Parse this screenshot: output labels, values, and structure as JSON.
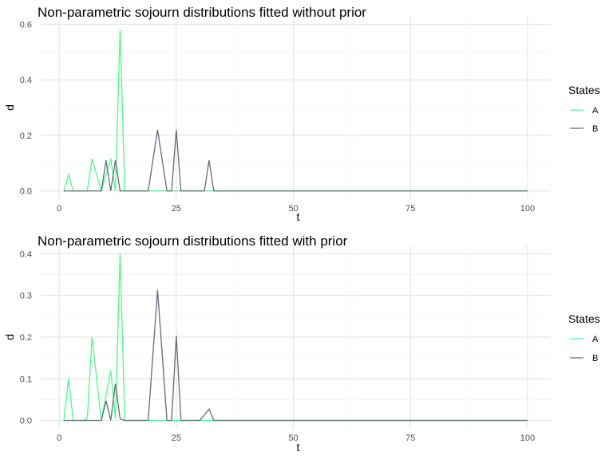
{
  "chart_data": [
    {
      "type": "line",
      "title": "Non-parametric sojourn distributions fitted without prior",
      "xlabel": "t",
      "ylabel": "d",
      "xlim": [
        1,
        100
      ],
      "ylim": [
        0,
        0.6
      ],
      "xticks": [
        0,
        25,
        50,
        75,
        100
      ],
      "yticks": [
        "0.0",
        "0.2",
        "0.4",
        "0.6"
      ],
      "grid": true,
      "legend": {
        "title": "States",
        "placement": "right"
      },
      "series": [
        {
          "name": "A",
          "color": "#4dfa8c",
          "points": [
            [
              1,
              0
            ],
            [
              2,
              0.058
            ],
            [
              3,
              0
            ],
            [
              4,
              0
            ],
            [
              5,
              0
            ],
            [
              6,
              0
            ],
            [
              7,
              0.116
            ],
            [
              8,
              0.058
            ],
            [
              9,
              0
            ],
            [
              10,
              0.058
            ],
            [
              11,
              0.116
            ],
            [
              12,
              0
            ],
            [
              13,
              0.58
            ],
            [
              14,
              0
            ],
            [
              15,
              0
            ],
            [
              100,
              0
            ]
          ]
        },
        {
          "name": "B",
          "color": "#5f6b7c",
          "points": [
            [
              1,
              0
            ],
            [
              2,
              0
            ],
            [
              3,
              0
            ],
            [
              4,
              0
            ],
            [
              5,
              0
            ],
            [
              6,
              0
            ],
            [
              7,
              0
            ],
            [
              8,
              0
            ],
            [
              9,
              0
            ],
            [
              10,
              0.11
            ],
            [
              11,
              0
            ],
            [
              12,
              0.11
            ],
            [
              13,
              0
            ],
            [
              14,
              0
            ],
            [
              15,
              0
            ],
            [
              16,
              0
            ],
            [
              17,
              0
            ],
            [
              18,
              0
            ],
            [
              19,
              0
            ],
            [
              20,
              0.11
            ],
            [
              21,
              0.22
            ],
            [
              22,
              0.11
            ],
            [
              23,
              0
            ],
            [
              24,
              0
            ],
            [
              25,
              0.22
            ],
            [
              26,
              0
            ],
            [
              27,
              0
            ],
            [
              28,
              0
            ],
            [
              29,
              0
            ],
            [
              30,
              0
            ],
            [
              31,
              0
            ],
            [
              32,
              0.11
            ],
            [
              33,
              0
            ],
            [
              100,
              0
            ]
          ]
        }
      ]
    },
    {
      "type": "line",
      "title": "Non-parametric sojourn distributions fitted with prior",
      "xlabel": "t",
      "ylabel": "d",
      "xlim": [
        1,
        100
      ],
      "ylim": [
        0,
        0.4
      ],
      "xticks": [
        0,
        25,
        50,
        75,
        100
      ],
      "yticks": [
        "0.0",
        "0.1",
        "0.2",
        "0.3",
        "0.4"
      ],
      "grid": true,
      "legend": {
        "title": "States",
        "placement": "right"
      },
      "series": [
        {
          "name": "A",
          "color": "#4dfa8c",
          "points": [
            [
              1,
              0
            ],
            [
              2,
              0.1
            ],
            [
              3,
              0
            ],
            [
              4,
              0
            ],
            [
              5,
              0
            ],
            [
              6,
              0.005
            ],
            [
              7,
              0.2
            ],
            [
              8,
              0.1
            ],
            [
              9,
              0
            ],
            [
              10,
              0.06
            ],
            [
              11,
              0.12
            ],
            [
              12,
              0.005
            ],
            [
              13,
              0.4
            ],
            [
              14,
              0
            ],
            [
              15,
              0
            ],
            [
              100,
              0
            ]
          ]
        },
        {
          "name": "B",
          "color": "#5f6b7c",
          "points": [
            [
              1,
              0
            ],
            [
              2,
              0
            ],
            [
              3,
              0
            ],
            [
              4,
              0
            ],
            [
              5,
              0
            ],
            [
              6,
              0
            ],
            [
              7,
              0
            ],
            [
              8,
              0
            ],
            [
              9,
              0
            ],
            [
              10,
              0.047
            ],
            [
              11,
              0
            ],
            [
              12,
              0.088
            ],
            [
              13,
              0.004
            ],
            [
              14,
              0
            ],
            [
              15,
              0
            ],
            [
              16,
              0
            ],
            [
              17,
              0
            ],
            [
              18,
              0
            ],
            [
              19,
              0
            ],
            [
              20,
              0.157
            ],
            [
              21,
              0.313
            ],
            [
              22,
              0.157
            ],
            [
              23,
              0
            ],
            [
              24,
              0
            ],
            [
              25,
              0.203
            ],
            [
              26,
              0
            ],
            [
              27,
              0
            ],
            [
              28,
              0
            ],
            [
              29,
              0
            ],
            [
              30,
              0
            ],
            [
              31,
              0.013
            ],
            [
              32,
              0.027
            ],
            [
              33,
              0
            ],
            [
              100,
              0
            ]
          ]
        }
      ]
    }
  ]
}
